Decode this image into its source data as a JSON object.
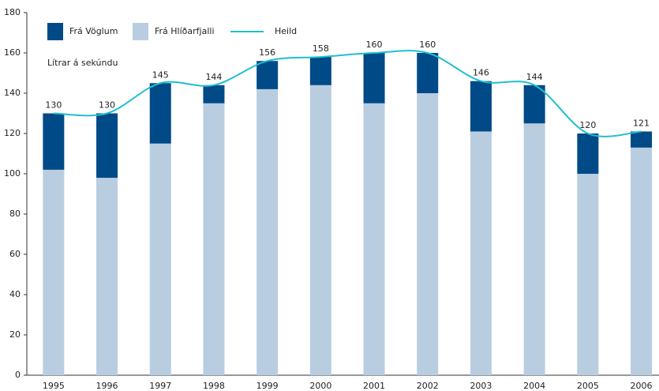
{
  "chart_data": {
    "type": "bar",
    "ylabel": "Lítrar á sekúndu",
    "categories": [
      "1995",
      "1996",
      "1997",
      "1998",
      "1999",
      "2000",
      "2001",
      "2002",
      "2003",
      "2004",
      "2005",
      "2006"
    ],
    "series": [
      {
        "name": "Frá Vöglum",
        "color": "#004a87",
        "stack": true,
        "values": [
          28,
          32,
          30,
          9,
          14,
          14,
          25,
          20,
          25,
          19,
          20,
          8
        ]
      },
      {
        "name": "Frá Hlíðarfjalli",
        "color": "#b8cde0",
        "stack": true,
        "values": [
          102,
          98,
          115,
          135,
          142,
          144,
          135,
          140,
          121,
          125,
          100,
          113
        ]
      },
      {
        "name": "Heild",
        "color": "#1fbfd0",
        "type": "line",
        "values": [
          130,
          130,
          145,
          144,
          156,
          158,
          160,
          160,
          146,
          144,
          120,
          121
        ]
      }
    ],
    "ylim": [
      0,
      180
    ],
    "yticks": [
      0,
      20,
      40,
      60,
      80,
      100,
      120,
      140,
      160,
      180
    ],
    "grid": false
  }
}
